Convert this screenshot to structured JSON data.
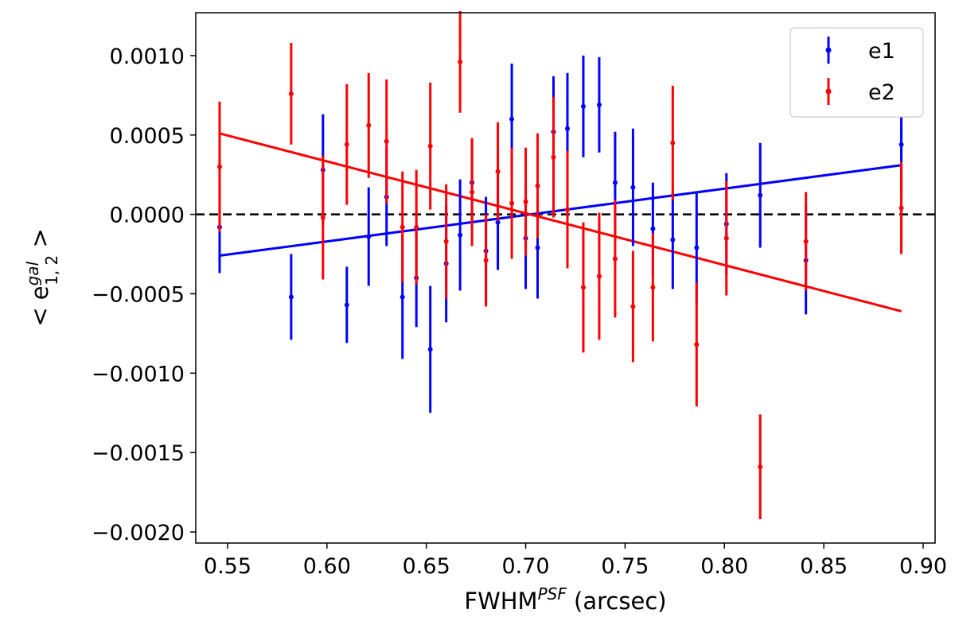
{
  "chart_data": {
    "type": "scatter",
    "xlabel_main": "FWHM",
    "xlabel_sup": "PSF",
    "xlabel_tail": " (arcsec)",
    "ylabel_prefix": "< e",
    "ylabel_sup": "gal",
    "ylabel_sub": "1, 2",
    "ylabel_suffix": " >",
    "xlim": [
      0.534,
      0.906
    ],
    "ylim": [
      -0.00207,
      0.00127
    ],
    "x_ticks": [
      0.55,
      0.6,
      0.65,
      0.7,
      0.75,
      0.8,
      0.85,
      0.9
    ],
    "x_tick_labels": [
      "0.55",
      "0.60",
      "0.65",
      "0.70",
      "0.75",
      "0.80",
      "0.85",
      "0.90"
    ],
    "y_ticks": [
      0.001,
      0.0005,
      0.0,
      -0.0005,
      -0.001,
      -0.0015,
      -0.002
    ],
    "y_tick_labels": [
      "0.0010",
      "0.0005",
      "0.0000",
      "−0.0005",
      "−0.0010",
      "−0.0015",
      "−0.0020"
    ],
    "reference_line": {
      "y": 0.0,
      "style": "dashed",
      "color": "#000000"
    },
    "legend_position": "top-right",
    "series": [
      {
        "name": "e1",
        "color": "#0000ff",
        "points": [
          [
            0.546,
            -8e-05,
            0.00029
          ],
          [
            0.582,
            -0.00052,
            0.00027
          ],
          [
            0.598,
            0.00028,
            0.00035
          ],
          [
            0.61,
            -0.00057,
            0.00024
          ],
          [
            0.621,
            -0.00014,
            0.00031
          ],
          [
            0.63,
            0.00011,
            0.00031
          ],
          [
            0.638,
            -0.00052,
            0.00039
          ],
          [
            0.645,
            -0.0004,
            0.00031
          ],
          [
            0.652,
            -0.00085,
            0.0004
          ],
          [
            0.66,
            -0.00031,
            0.00037
          ],
          [
            0.667,
            -0.00013,
            0.00035
          ],
          [
            0.673,
            0.0002,
            0.00028
          ],
          [
            0.68,
            -0.00023,
            0.00034
          ],
          [
            0.686,
            -5e-05,
            0.0003
          ],
          [
            0.693,
            0.0006,
            0.00035
          ],
          [
            0.7,
            -0.00015,
            0.00032
          ],
          [
            0.706,
            -0.00021,
            0.00032
          ],
          [
            0.714,
            0.00052,
            0.00035
          ],
          [
            0.721,
            0.00054,
            0.00035
          ],
          [
            0.729,
            0.00068,
            0.00032
          ],
          [
            0.737,
            0.00069,
            0.0003
          ],
          [
            0.745,
            0.0002,
            0.00032
          ],
          [
            0.754,
            0.00017,
            0.00037
          ],
          [
            0.764,
            -9e-05,
            0.00029
          ],
          [
            0.774,
            -0.00016,
            0.00031
          ],
          [
            0.786,
            -0.00021,
            0.00035
          ],
          [
            0.801,
            -6e-05,
            0.00032
          ],
          [
            0.818,
            0.00012,
            0.00033
          ],
          [
            0.841,
            -0.00029,
            0.00034
          ],
          [
            0.889,
            0.00044,
            0.00029
          ]
        ],
        "fit": [
          [
            0.546,
            -0.00026
          ],
          [
            0.889,
            0.00031
          ]
        ]
      },
      {
        "name": "e2",
        "color": "#ff0000",
        "points": [
          [
            0.546,
            0.0003,
            0.00041
          ],
          [
            0.582,
            0.00076,
            0.00032
          ],
          [
            0.598,
            -2e-05,
            0.00039
          ],
          [
            0.61,
            0.00044,
            0.00038
          ],
          [
            0.621,
            0.00056,
            0.00033
          ],
          [
            0.63,
            0.00046,
            0.00039
          ],
          [
            0.638,
            -8e-05,
            0.00035
          ],
          [
            0.645,
            -8e-05,
            0.00036
          ],
          [
            0.652,
            0.00043,
            0.0004
          ],
          [
            0.66,
            -0.00017,
            0.00036
          ],
          [
            0.667,
            0.00096,
            0.00032
          ],
          [
            0.673,
            0.00014,
            0.00034
          ],
          [
            0.68,
            -0.00029,
            0.00029
          ],
          [
            0.686,
            0.00027,
            0.00031
          ],
          [
            0.693,
            7e-05,
            0.00035
          ],
          [
            0.7,
            8e-05,
            0.00034
          ],
          [
            0.706,
            0.00018,
            0.00033
          ],
          [
            0.714,
            0.00036,
            0.00038
          ],
          [
            0.721,
            3e-05,
            0.00037
          ],
          [
            0.729,
            -0.00046,
            0.00041
          ],
          [
            0.737,
            -0.00039,
            0.0004
          ],
          [
            0.745,
            -0.00028,
            0.00037
          ],
          [
            0.754,
            -0.00058,
            0.00035
          ],
          [
            0.764,
            -0.00046,
            0.00034
          ],
          [
            0.774,
            0.00045,
            0.00036
          ],
          [
            0.786,
            -0.00082,
            0.00039
          ],
          [
            0.801,
            -0.00015,
            0.00036
          ],
          [
            0.818,
            -0.00159,
            0.00033
          ],
          [
            0.841,
            -0.00017,
            0.00031
          ],
          [
            0.889,
            4e-05,
            0.00029
          ]
        ],
        "fit": [
          [
            0.546,
            0.00051
          ],
          [
            0.889,
            -0.00061
          ]
        ]
      }
    ]
  }
}
